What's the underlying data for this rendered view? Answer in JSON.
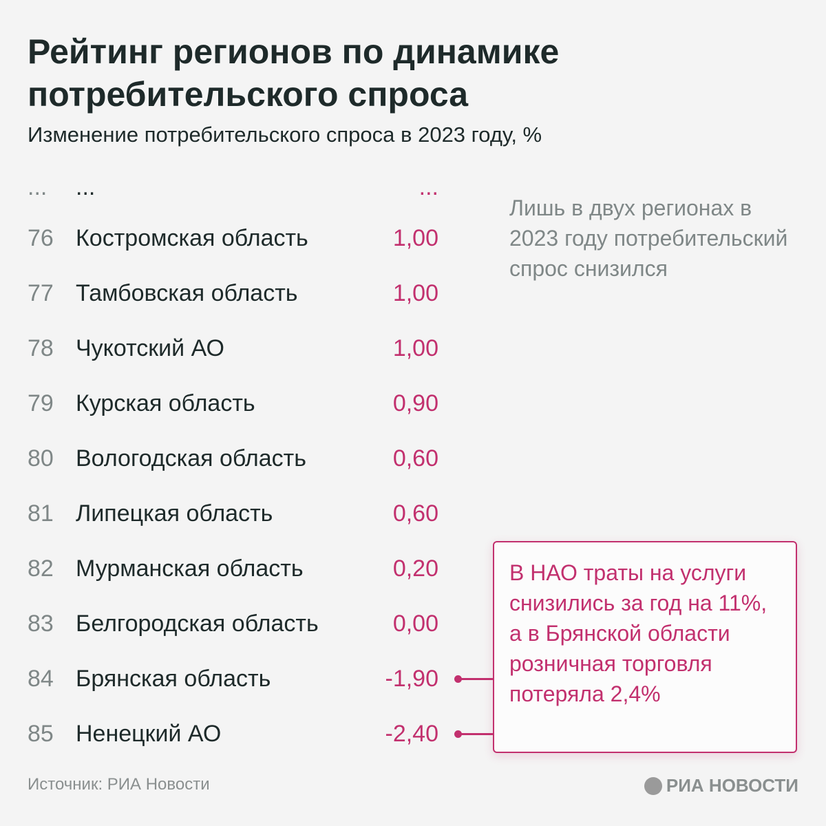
{
  "title": "Рейтинг регионов по динамике потребительского спроса",
  "subtitle": "Изменение потребительского спроса в 2023 году, %",
  "ellipsis": {
    "rank": "...",
    "name": "...",
    "value": "..."
  },
  "chart_data": {
    "type": "table",
    "title": "Рейтинг регионов по динамике потребительского спроса",
    "subtitle": "Изменение потребительского спроса в 2023 году, %",
    "columns": [
      "rank",
      "region",
      "value"
    ],
    "rows": [
      {
        "rank": "76",
        "name": "Костромская область",
        "value": "1,00"
      },
      {
        "rank": "77",
        "name": "Тамбовская область",
        "value": "1,00"
      },
      {
        "rank": "78",
        "name": "Чукотский АО",
        "value": "1,00"
      },
      {
        "rank": "79",
        "name": "Курская область",
        "value": "0,90"
      },
      {
        "rank": "80",
        "name": "Вологодская область",
        "value": "0,60"
      },
      {
        "rank": "81",
        "name": "Липецкая область",
        "value": "0,60"
      },
      {
        "rank": "82",
        "name": "Мурманская область",
        "value": "0,20"
      },
      {
        "rank": "83",
        "name": "Белгородская область",
        "value": "0,00"
      },
      {
        "rank": "84",
        "name": "Брянская область",
        "value": "-1,90"
      },
      {
        "rank": "85",
        "name": "Ненецкий АО",
        "value": "-2,40"
      }
    ]
  },
  "side_note": "Лишь в двух регионах в 2023 году потребительский спрос снизился",
  "callout": "В НАО траты на услуги снизились за год на 11%, а в Брянской области розничная торговля потеряла 2,4%",
  "source": "Источник: РИА Новости",
  "logo": "РИА НОВОСТИ",
  "colors": {
    "accent": "#c2306e",
    "muted": "#7f8787",
    "background": "#f4f4f4"
  }
}
